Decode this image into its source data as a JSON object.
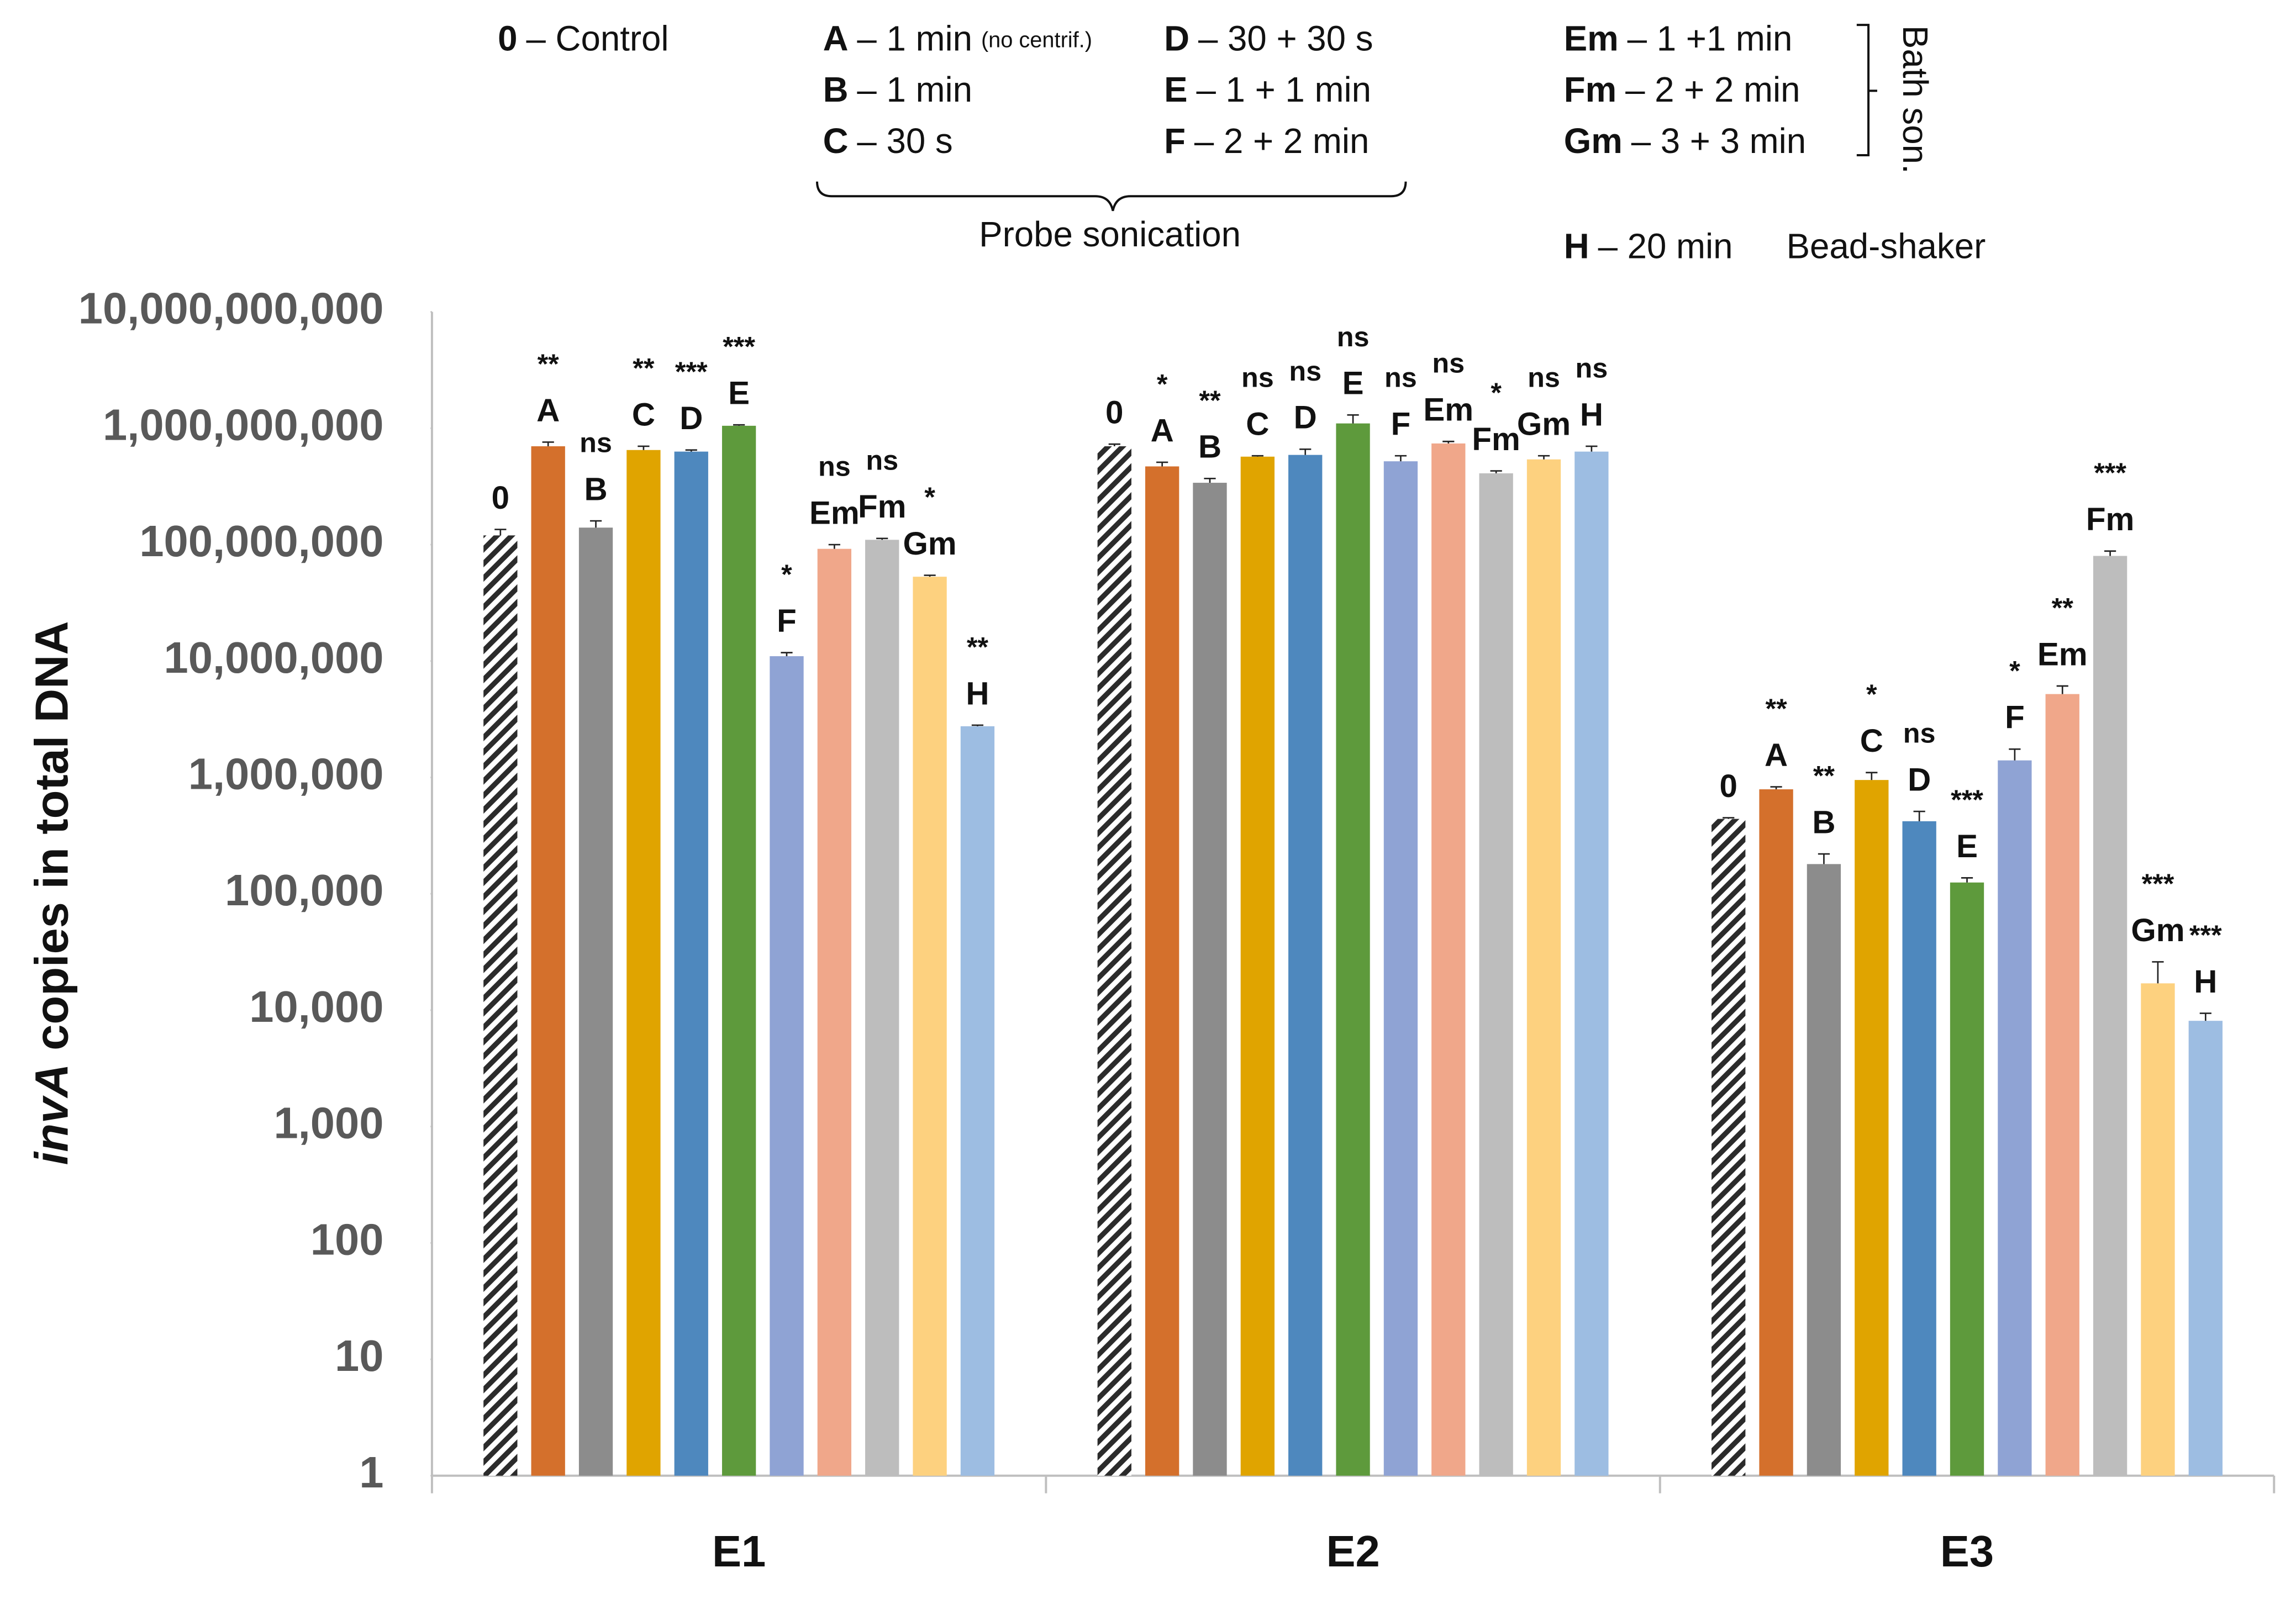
{
  "chart_data": {
    "type": "bar",
    "log_scale": true,
    "grid": false,
    "y_label": {
      "italic": "invA",
      "text": "copies in total DNA"
    },
    "categories": [
      "E1",
      "E2",
      "E3"
    ],
    "ylim": [
      1,
      10000000000
    ],
    "yticks": [
      1,
      10,
      100,
      {
        "value": 1000,
        "label": "1,000"
      },
      {
        "value": 10000,
        "label": "10,000"
      },
      {
        "value": 100000,
        "label": "100,000"
      },
      {
        "value": 1000000,
        "label": "1,000,000"
      },
      {
        "value": 10000000,
        "label": "10,000,000"
      },
      {
        "value": 100000000,
        "label": "100,000,000"
      },
      {
        "value": 1000000000,
        "label": "1,000,000,000"
      },
      {
        "value": 10000000000,
        "label": "10,000,000,000"
      }
    ],
    "legend_notes": {
      "control": {
        "key": "0",
        "text": "– Control"
      },
      "probe": [
        {
          "key": "A",
          "text": "– 1 min",
          "note": "(no centrif.)"
        },
        {
          "key": "B",
          "text": "– 1 min"
        },
        {
          "key": "C",
          "text": "– 30 s"
        },
        {
          "key": "D",
          "text": "– 30 + 30 s"
        },
        {
          "key": "E",
          "text": "– 1 + 1 min"
        },
        {
          "key": "F",
          "text": "– 2 + 2 min"
        }
      ],
      "probe_label": "Probe sonication",
      "bath": [
        {
          "key": "Em",
          "text": "– 1 +1 min"
        },
        {
          "key": "Fm",
          "text": "– 2 + 2 min"
        },
        {
          "key": "Gm",
          "text": "– 3 + 3 min"
        }
      ],
      "bath_label": "Bath son.",
      "bead": {
        "key": "H",
        "text": "– 20 min"
      },
      "bead_label": "Bead-shaker"
    },
    "series": [
      {
        "name": "0",
        "color": "#2b2b2b",
        "hatch": true,
        "values": [
          120000000,
          700000000,
          440000
        ],
        "errors": [
          15000000,
          30000000,
          10000
        ]
      },
      {
        "name": "A",
        "color": "#d4702c",
        "values": [
          700000000,
          470000000,
          790000
        ],
        "errors": [
          60000000,
          40000000,
          40000
        ],
        "significance": [
          "**",
          "*",
          "**"
        ]
      },
      {
        "name": "B",
        "color": "#8c8c8c",
        "values": [
          140000000,
          340000000,
          180000
        ],
        "errors": [
          20000000,
          30000000,
          40000
        ],
        "significance": [
          "ns",
          "**",
          "**"
        ]
      },
      {
        "name": "C",
        "color": "#e0a400",
        "values": [
          650000000,
          570000000,
          950000
        ],
        "errors": [
          50000000,
          10000000,
          150000
        ],
        "significance": [
          "**",
          "ns",
          "*"
        ]
      },
      {
        "name": "D",
        "color": "#4e88be",
        "values": [
          630000000,
          590000000,
          420000
        ],
        "errors": [
          20000000,
          70000000,
          90000
        ],
        "significance": [
          "***",
          "ns",
          "ns"
        ]
      },
      {
        "name": "E",
        "color": "#5e9a3c",
        "values": [
          1050000000,
          1100000000,
          125000
        ],
        "errors": [
          20000000,
          200000000,
          12000
        ],
        "significance": [
          "***",
          "ns",
          "***"
        ]
      },
      {
        "name": "F",
        "color": "#8fa3d4",
        "values": [
          11000000,
          520000000,
          1400000
        ],
        "errors": [
          800000,
          60000000,
          350000
        ],
        "significance": [
          "*",
          "ns",
          "*"
        ]
      },
      {
        "name": "Em",
        "color": "#f0a78a",
        "values": [
          92000000,
          740000000,
          5200000
        ],
        "errors": [
          8000000,
          30000000,
          900000
        ],
        "significance": [
          "ns",
          "ns",
          "**"
        ]
      },
      {
        "name": "Fm",
        "color": "#bdbdbd",
        "values": [
          110000000,
          410000000,
          80000000
        ],
        "errors": [
          3000000,
          20000000,
          8000000
        ],
        "significance": [
          "ns",
          "*",
          "***"
        ]
      },
      {
        "name": "Gm",
        "color": "#fdd17f",
        "values": [
          53000000,
          540000000,
          17000
        ],
        "errors": [
          1500000,
          40000000,
          9000
        ],
        "significance": [
          "*",
          "ns",
          "***"
        ]
      },
      {
        "name": "H",
        "color": "#9dbde2",
        "values": [
          2750000,
          630000000,
          8100
        ],
        "errors": [
          60000,
          70000000,
          1300
        ],
        "significance": [
          "**",
          "ns",
          "***"
        ]
      }
    ]
  }
}
